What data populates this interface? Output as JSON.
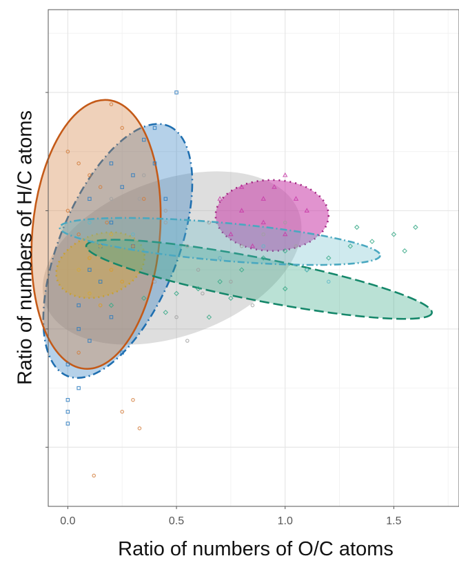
{
  "chart_data": {
    "type": "scatter",
    "title": "",
    "xlabel": "Ratio of numbers  of O/C atoms",
    "ylabel": "Ratio of numbers  of H/C atoms",
    "xlim": [
      -0.09,
      1.8
    ],
    "x_ticks": [
      0.0,
      0.5,
      1.0,
      1.5
    ],
    "x_tick_labels": [
      "0.0",
      "0.5",
      "1.0",
      "1.5"
    ],
    "ylim": [
      0.0,
      2.1
    ],
    "y_ticks": [
      0.25,
      0.75,
      1.25,
      1.75
    ],
    "y_tick_labels": [],
    "grid": true,
    "legend": "none",
    "series": [
      {
        "color": "#a0a0a0",
        "marker": "circle",
        "ellipse": {
          "cx": 0.48,
          "cy": 1.05,
          "rx": 0.62,
          "ry": 0.33,
          "angle_deg": 20,
          "fill_opacity": 0.35,
          "stroke": "none",
          "dash": "solid"
        },
        "points": [
          [
            0.33,
            1.3
          ],
          [
            0.45,
            1.2
          ],
          [
            0.55,
            1.1
          ],
          [
            0.6,
            1.0
          ],
          [
            0.62,
            0.9
          ],
          [
            0.5,
            0.8
          ],
          [
            0.4,
            0.95
          ],
          [
            0.3,
            1.15
          ],
          [
            0.2,
            1.3
          ],
          [
            0.35,
            1.4
          ],
          [
            0.7,
            1.05
          ],
          [
            0.8,
            1.1
          ],
          [
            0.75,
            0.95
          ],
          [
            0.65,
            1.2
          ],
          [
            0.9,
            1.15
          ],
          [
            1.0,
            1.2
          ],
          [
            1.05,
            1.1
          ],
          [
            0.85,
            0.85
          ],
          [
            0.55,
            0.7
          ],
          [
            0.45,
            1.25
          ]
        ]
      },
      {
        "color": "#2b7bbf",
        "marker": "square",
        "ellipse": {
          "cx": 0.23,
          "cy": 1.08,
          "rx": 0.62,
          "ry": 0.25,
          "angle_deg": 68,
          "fill_opacity": 0.35,
          "stroke": "#1f6fb0",
          "dash": "12,5,2,5"
        },
        "points": [
          [
            0.0,
            0.35
          ],
          [
            0.0,
            0.4
          ],
          [
            0.0,
            0.45
          ],
          [
            0.05,
            0.5
          ],
          [
            0.0,
            0.6
          ],
          [
            0.1,
            0.7
          ],
          [
            0.05,
            0.85
          ],
          [
            0.1,
            1.0
          ],
          [
            0.15,
            1.1
          ],
          [
            0.2,
            1.2
          ],
          [
            0.1,
            1.3
          ],
          [
            0.25,
            1.35
          ],
          [
            0.3,
            1.4
          ],
          [
            0.2,
            1.45
          ],
          [
            0.35,
            1.55
          ],
          [
            0.4,
            1.6
          ],
          [
            0.5,
            1.75
          ],
          [
            0.45,
            1.3
          ],
          [
            0.3,
            1.1
          ],
          [
            0.15,
            0.95
          ],
          [
            0.05,
            0.75
          ],
          [
            0.2,
            0.8
          ],
          [
            0.25,
            0.65
          ],
          [
            0.4,
            1.45
          ]
        ]
      },
      {
        "color": "#d27b3a",
        "marker": "circle",
        "ellipse": {
          "cx": 0.13,
          "cy": 1.15,
          "rx": 0.62,
          "ry": 0.27,
          "angle_deg": 85,
          "fill_opacity": 0.35,
          "stroke": "#c45a18",
          "dash": "solid"
        },
        "points": [
          [
            0.0,
            1.5
          ],
          [
            0.05,
            1.45
          ],
          [
            0.1,
            1.4
          ],
          [
            0.15,
            1.35
          ],
          [
            0.0,
            1.25
          ],
          [
            0.05,
            1.15
          ],
          [
            0.1,
            1.05
          ],
          [
            0.2,
            1.0
          ],
          [
            0.25,
            0.95
          ],
          [
            0.3,
            1.1
          ],
          [
            0.35,
            1.3
          ],
          [
            0.25,
            1.6
          ],
          [
            0.2,
            1.7
          ],
          [
            0.15,
            0.85
          ],
          [
            0.25,
            0.4
          ],
          [
            0.3,
            0.45
          ],
          [
            0.12,
            0.13
          ],
          [
            0.33,
            0.33
          ],
          [
            0.05,
            0.65
          ],
          [
            0.18,
            1.2
          ]
        ]
      },
      {
        "color": "#d4a83a",
        "marker": "circle",
        "ellipse": {
          "cx": 0.15,
          "cy": 1.02,
          "rx": 0.21,
          "ry": 0.13,
          "angle_deg": 20,
          "fill_opacity": 0.4,
          "stroke": "#c8a030",
          "dash": "2,5"
        },
        "points": [
          [
            0.05,
            1.0
          ],
          [
            0.1,
            1.05
          ],
          [
            0.15,
            1.1
          ],
          [
            0.2,
            1.0
          ],
          [
            0.25,
            0.95
          ],
          [
            0.1,
            0.9
          ],
          [
            0.2,
            1.15
          ],
          [
            0.15,
            0.85
          ]
        ]
      },
      {
        "color": "#c83aa8",
        "marker": "triangle",
        "ellipse": {
          "cx": 0.94,
          "cy": 1.23,
          "rx": 0.26,
          "ry": 0.15,
          "angle_deg": 0,
          "fill_opacity": 0.55,
          "stroke": "#a0207f",
          "dash": "2,6"
        },
        "points": [
          [
            0.7,
            1.3
          ],
          [
            0.8,
            1.25
          ],
          [
            0.9,
            1.2
          ],
          [
            1.0,
            1.15
          ],
          [
            1.1,
            1.25
          ],
          [
            0.95,
            1.35
          ],
          [
            0.85,
            1.1
          ],
          [
            0.75,
            1.15
          ],
          [
            1.05,
            1.3
          ],
          [
            1.0,
            1.4
          ],
          [
            0.9,
            1.3
          ],
          [
            0.8,
            1.35
          ]
        ]
      },
      {
        "color": "#3aaa88",
        "marker": "diamond",
        "ellipse": {
          "cx": 0.88,
          "cy": 0.96,
          "rx": 0.81,
          "ry": 0.09,
          "angle_deg": -11,
          "fill_opacity": 0.35,
          "stroke": "#15876a",
          "dash": "14,6"
        },
        "points": [
          [
            0.2,
            0.85
          ],
          [
            0.35,
            0.88
          ],
          [
            0.5,
            0.9
          ],
          [
            0.6,
            0.92
          ],
          [
            0.7,
            0.95
          ],
          [
            0.8,
            1.0
          ],
          [
            0.9,
            1.05
          ],
          [
            1.0,
            1.08
          ],
          [
            1.1,
            1.0
          ],
          [
            1.2,
            1.05
          ],
          [
            1.3,
            1.1
          ],
          [
            1.4,
            1.12
          ],
          [
            1.5,
            1.15
          ],
          [
            1.6,
            1.18
          ],
          [
            0.45,
            0.82
          ],
          [
            0.75,
            0.88
          ],
          [
            1.0,
            0.92
          ],
          [
            1.33,
            1.18
          ],
          [
            0.65,
            0.8
          ],
          [
            1.55,
            1.08
          ]
        ]
      },
      {
        "color": "#5fb8c8",
        "marker": "circle",
        "ellipse": {
          "cx": 0.7,
          "cy": 1.12,
          "rx": 0.74,
          "ry": 0.08,
          "angle_deg": -5,
          "fill_opacity": 0.3,
          "stroke": "#4aa8c0",
          "dash": "10,4,2,4"
        },
        "points": [
          [
            0.1,
            1.2
          ],
          [
            0.3,
            1.15
          ],
          [
            0.5,
            1.1
          ],
          [
            0.7,
            1.05
          ],
          [
            0.9,
            1.1
          ],
          [
            1.1,
            1.0
          ],
          [
            1.2,
            0.95
          ]
        ]
      }
    ]
  }
}
